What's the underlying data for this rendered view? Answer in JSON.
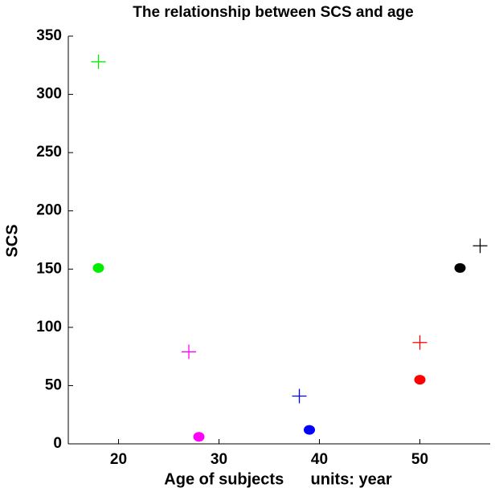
{
  "chart_data": {
    "type": "scatter",
    "title": "The relationship between SCS and age",
    "x_label": "Age of subjects      units: year",
    "y_label": "SCS",
    "xlim": [
      15,
      57
    ],
    "ylim": [
      0,
      350
    ],
    "xticks": [
      20,
      30,
      40,
      50
    ],
    "yticks": [
      0,
      50,
      100,
      150,
      200,
      250,
      300,
      350
    ],
    "series": [
      {
        "marker": "circle",
        "colors": [
          "#00ee00",
          "#ff00ff",
          "#0000ff",
          "#ff0000",
          "#000000"
        ],
        "x": [
          18,
          28,
          39,
          50,
          54
        ],
        "values": [
          151,
          6,
          12,
          55,
          151
        ]
      },
      {
        "marker": "plus",
        "colors": [
          "#00ee00",
          "#ff00ff",
          "#0000ff",
          "#ff0000",
          "#000000"
        ],
        "x": [
          18,
          27,
          38,
          50,
          56
        ],
        "values": [
          328,
          79,
          41,
          87,
          170
        ]
      }
    ]
  }
}
